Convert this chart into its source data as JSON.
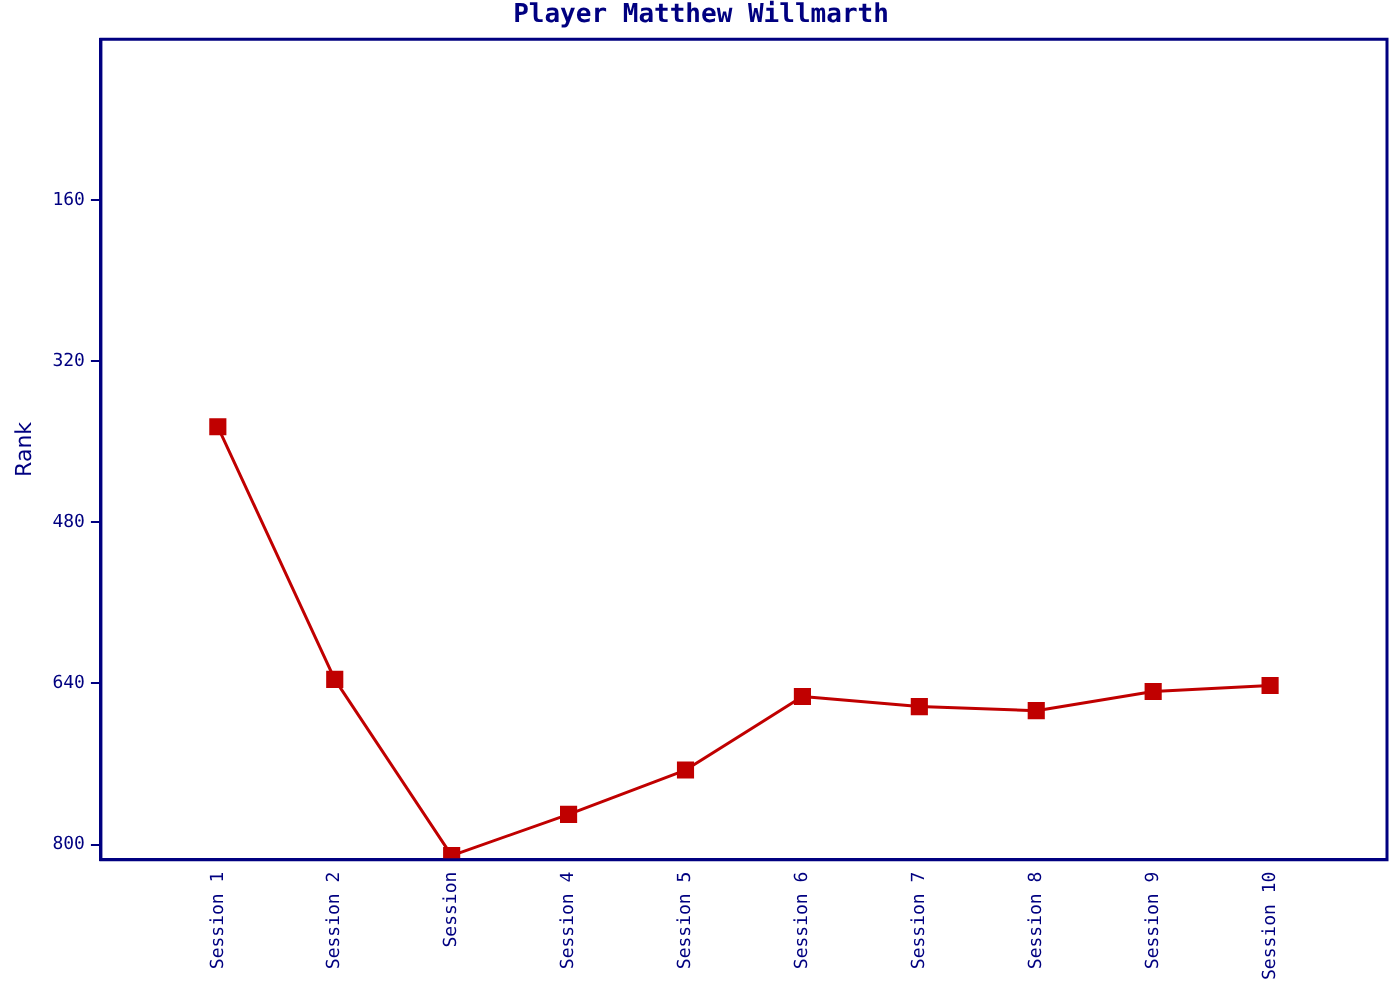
{
  "chart_data": {
    "type": "line",
    "title": "Player Matthew Willmarth",
    "ylabel": "Rank",
    "categories": [
      "Session 1",
      "Session 2",
      "Session",
      "Session 4",
      "Session 5",
      "Session 6",
      "Session 7",
      "Session 8",
      "Session 9",
      "Session 10"
    ],
    "series": [
      {
        "color": "#c00000",
        "values": [
          385,
          636,
          811,
          770,
          726,
          653,
          663,
          667,
          648,
          642
        ]
      }
    ],
    "ylim": [
      815,
      0
    ],
    "yticks": [
      160,
      320,
      480,
      640,
      800
    ],
    "grid": false,
    "legend": false,
    "marker": "square",
    "line_style": "solid"
  }
}
